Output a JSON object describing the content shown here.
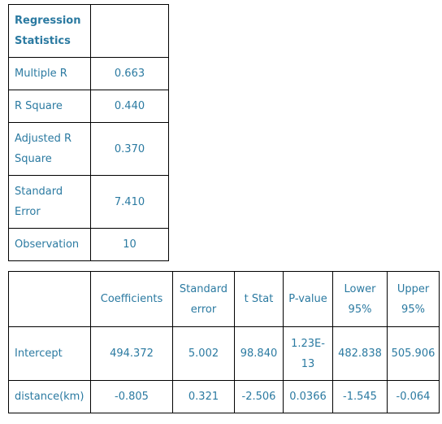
{
  "stats_table": {
    "header": "Regression Statistics",
    "rows": [
      {
        "label": "Multiple R",
        "value": "0.663"
      },
      {
        "label": "R Square",
        "value": "0.440"
      },
      {
        "label": "Adjusted R Square",
        "value": "0.370"
      },
      {
        "label": "Standard Error",
        "value": "7.410"
      },
      {
        "label": "Observation",
        "value": "10"
      }
    ]
  },
  "coef_table": {
    "headers": [
      "",
      "Coefficients",
      "Standard error",
      "t Stat",
      "P-value",
      "Lower 95%",
      "Upper 95%"
    ],
    "rows": [
      [
        "Intercept",
        "494.372",
        "5.002",
        "98.840",
        "1.23E-13",
        "482.838",
        "505.906"
      ],
      [
        "distance(km)",
        "-0.805",
        "0.321",
        "-2.506",
        "0.0366",
        "-1.545",
        "-0.064"
      ]
    ]
  },
  "colors": {
    "text": "#2b7aa1",
    "border": "#000000",
    "background": "#ffffff"
  }
}
